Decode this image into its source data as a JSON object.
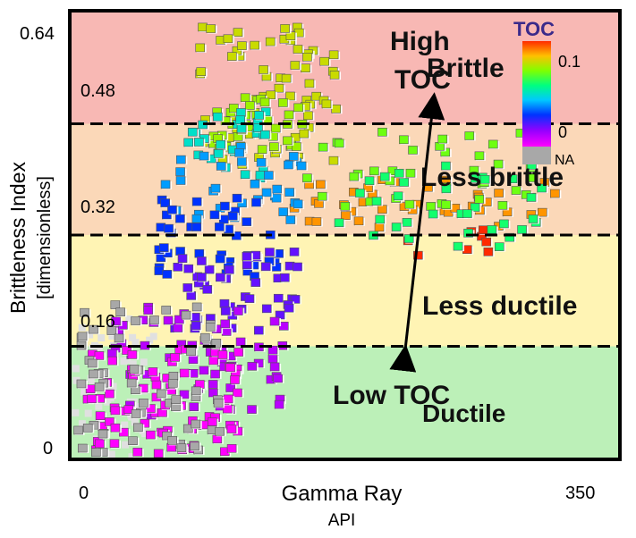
{
  "chart_data": {
    "type": "scatter",
    "xlabel": "Gamma Ray",
    "xunit": "API",
    "ylabel": "Brittleness Index",
    "yunit": "[dimensionless]",
    "xlim": [
      0,
      350
    ],
    "ylim": [
      0,
      0.64
    ],
    "x_ticks": [
      "0",
      "350"
    ],
    "y_ticks": [
      "0",
      "0.64"
    ],
    "grid": false,
    "zones": [
      {
        "name": "Brittle",
        "y_from": 0.48,
        "y_to": 0.64,
        "color": "#f8b8b4",
        "line_label": "0.48"
      },
      {
        "name": "Less brittle",
        "y_from": 0.32,
        "y_to": 0.48,
        "color": "#fbd8b8",
        "line_label": "0.32"
      },
      {
        "name": "Less ductile",
        "y_from": 0.16,
        "y_to": 0.32,
        "color": "#fff4b4",
        "line_label": "0.16"
      },
      {
        "name": "Ductile",
        "y_from": 0.0,
        "y_to": 0.16,
        "color": "#bcf0b8",
        "line_label": ""
      }
    ],
    "annotations": {
      "high_toc": [
        "High",
        "TOC"
      ],
      "low_toc": "Low TOC"
    },
    "colorbar": {
      "title": "TOC",
      "max_label": "0.1",
      "min_label": "0",
      "na_label": "NA",
      "na_color": "#a8a8a8"
    },
    "series_clusters": [
      {
        "toc": 0.1,
        "x_range": [
          185,
          305
        ],
        "y_range": [
          0.29,
          0.33
        ],
        "n": 8
      },
      {
        "toc": 0.09,
        "x_range": [
          135,
          315
        ],
        "y_range": [
          0.33,
          0.4
        ],
        "n": 40
      },
      {
        "toc": 0.08,
        "x_range": [
          80,
          170
        ],
        "y_range": [
          0.42,
          0.62
        ],
        "n": 70
      },
      {
        "toc": 0.075,
        "x_range": [
          90,
          150
        ],
        "y_range": [
          0.44,
          0.52
        ],
        "n": 40
      },
      {
        "toc": 0.07,
        "x_range": [
          150,
          300
        ],
        "y_range": [
          0.36,
          0.47
        ],
        "n": 40
      },
      {
        "toc": 0.06,
        "x_range": [
          170,
          310
        ],
        "y_range": [
          0.3,
          0.42
        ],
        "n": 35
      },
      {
        "toc": 0.05,
        "x_range": [
          70,
          125
        ],
        "y_range": [
          0.4,
          0.5
        ],
        "n": 30
      },
      {
        "toc": 0.04,
        "x_range": [
          60,
          150
        ],
        "y_range": [
          0.34,
          0.45
        ],
        "n": 35
      },
      {
        "toc": 0.03,
        "x_range": [
          55,
          140
        ],
        "y_range": [
          0.26,
          0.38
        ],
        "n": 45
      },
      {
        "toc": 0.02,
        "x_range": [
          65,
          145
        ],
        "y_range": [
          0.18,
          0.3
        ],
        "n": 50
      },
      {
        "toc": 0.01,
        "x_range": [
          25,
          140
        ],
        "y_range": [
          0.06,
          0.22
        ],
        "n": 70
      },
      {
        "toc": 0.0,
        "x_range": [
          10,
          110
        ],
        "y_range": [
          0.0,
          0.16
        ],
        "n": 90
      },
      {
        "toc": -1,
        "x_range": [
          3,
          95
        ],
        "y_range": [
          0.0,
          0.22
        ],
        "n": 70
      }
    ]
  }
}
